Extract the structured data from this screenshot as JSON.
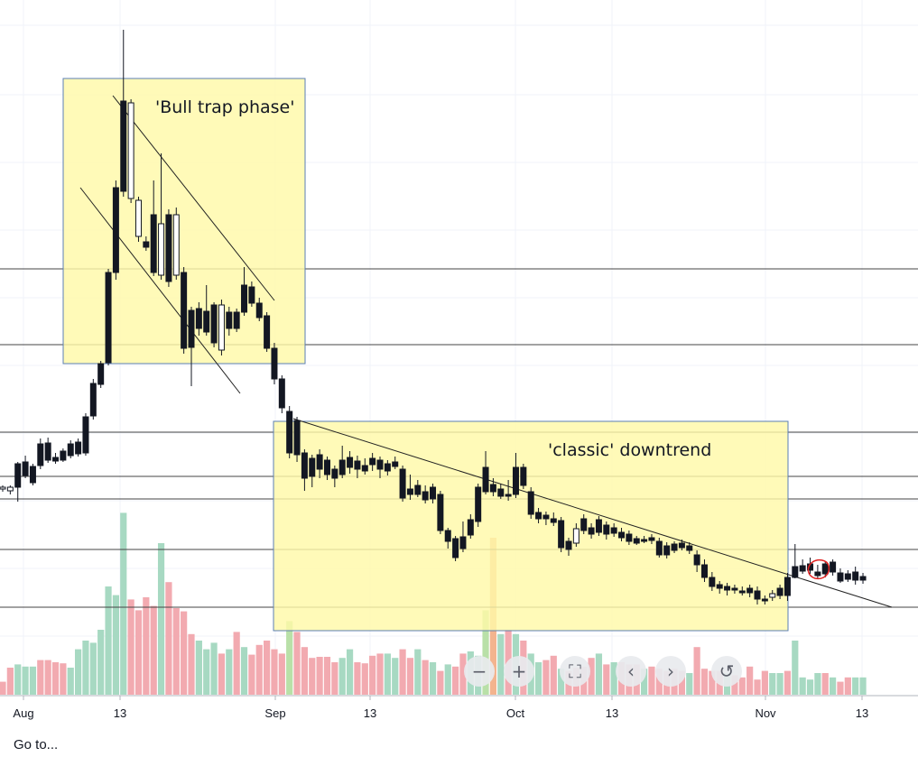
{
  "chart_data": {
    "type": "candlestick",
    "x_axis_labels": [
      "Aug",
      "13",
      "Sep",
      "13",
      "Oct",
      "13",
      "Nov",
      "13"
    ],
    "annotations": {
      "box1_text": "'Bull trap phase'",
      "box2_text": "'classic' downtrend"
    },
    "colors": {
      "box_fill": "#fff9a8",
      "box_stroke": "#5b7fb5",
      "candle": "#131722",
      "vol_up": "#a7d9c2",
      "vol_down": "#f2aab0",
      "vol_up_highlight": "#b9e0a8",
      "vol_down_highlight": "#f3b48e",
      "circle": "#e02020"
    },
    "candles": [
      [
        0,
        542,
        540,
        538,
        545
      ],
      [
        1,
        544,
        540,
        538,
        548
      ],
      [
        2,
        514,
        540,
        512,
        556
      ],
      [
        3,
        512,
        527,
        505,
        530
      ],
      [
        4,
        517,
        535,
        514,
        538
      ],
      [
        5,
        492,
        516,
        486,
        520
      ],
      [
        6,
        491,
        510,
        485,
        513
      ],
      [
        7,
        507,
        511,
        502,
        514
      ],
      [
        8,
        500,
        510,
        497,
        512
      ],
      [
        9,
        492,
        505,
        488,
        508
      ],
      [
        10,
        490,
        503,
        486,
        506
      ],
      [
        11,
        462,
        502,
        458,
        505
      ],
      [
        12,
        425,
        461,
        420,
        465
      ],
      [
        13,
        403,
        426,
        400,
        430
      ],
      [
        14,
        302,
        402,
        298,
        405
      ],
      [
        15,
        208,
        302,
        200,
        310
      ],
      [
        16,
        112,
        212,
        33,
        218
      ],
      [
        17,
        220,
        114,
        110,
        225
      ],
      [
        18,
        262,
        222,
        218,
        268
      ],
      [
        19,
        268,
        274,
        262,
        278
      ],
      [
        20,
        238,
        302,
        200,
        306
      ],
      [
        21,
        305,
        248,
        170,
        310
      ],
      [
        22,
        238,
        312,
        232,
        318
      ],
      [
        23,
        305,
        238,
        230,
        310
      ],
      [
        24,
        302,
        386,
        296,
        392
      ],
      [
        25,
        344,
        385,
        340,
        428
      ],
      [
        26,
        342,
        364,
        335,
        372
      ],
      [
        27,
        345,
        368,
        316,
        372
      ],
      [
        28,
        338,
        380,
        335,
        385
      ],
      [
        29,
        388,
        338,
        332,
        394
      ],
      [
        30,
        346,
        364,
        340,
        372
      ],
      [
        31,
        346,
        364,
        342,
        368
      ],
      [
        32,
        316,
        346,
        296,
        350
      ],
      [
        33,
        318,
        336,
        312,
        340
      ],
      [
        34,
        336,
        352,
        330,
        356
      ],
      [
        35,
        350,
        386,
        346,
        390
      ],
      [
        36,
        386,
        420,
        380,
        426
      ],
      [
        37,
        420,
        452,
        416,
        458
      ],
      [
        38,
        456,
        502,
        450,
        508
      ],
      [
        39,
        466,
        504,
        462,
        512
      ],
      [
        40,
        502,
        530,
        498,
        544
      ],
      [
        41,
        508,
        528,
        504,
        540
      ],
      [
        42,
        504,
        520,
        498,
        530
      ],
      [
        43,
        510,
        526,
        506,
        532
      ],
      [
        44,
        520,
        530,
        516,
        540
      ],
      [
        45,
        510,
        526,
        494,
        530
      ],
      [
        46,
        507,
        518,
        500,
        525
      ],
      [
        47,
        511,
        520,
        505,
        530
      ],
      [
        48,
        516,
        522,
        508,
        526
      ],
      [
        49,
        508,
        515,
        502,
        522
      ],
      [
        50,
        510,
        520,
        506,
        530
      ],
      [
        51,
        514,
        522,
        510,
        527
      ],
      [
        52,
        512,
        517,
        506,
        520
      ],
      [
        53,
        520,
        552,
        516,
        556
      ],
      [
        54,
        542,
        548,
        526,
        554
      ],
      [
        55,
        538,
        548,
        532,
        551
      ],
      [
        56,
        545,
        554,
        538,
        558
      ],
      [
        57,
        540,
        553,
        536,
        558
      ],
      [
        58,
        548,
        588,
        544,
        592
      ],
      [
        59,
        588,
        600,
        585,
        608
      ],
      [
        60,
        597,
        618,
        594,
        622
      ],
      [
        61,
        595,
        608,
        578,
        612
      ],
      [
        62,
        576,
        593,
        570,
        597
      ],
      [
        63,
        540,
        578,
        536,
        584
      ],
      [
        64,
        518,
        545,
        500,
        548
      ],
      [
        65,
        537,
        545,
        530,
        550
      ],
      [
        66,
        542,
        550,
        536,
        553
      ],
      [
        67,
        548,
        550,
        532,
        555
      ],
      [
        68,
        518,
        548,
        502,
        552
      ],
      [
        69,
        518,
        538,
        514,
        542
      ],
      [
        70,
        545,
        570,
        540,
        575
      ],
      [
        71,
        568,
        575,
        563,
        580
      ],
      [
        72,
        571,
        575,
        567,
        582
      ],
      [
        73,
        575,
        579,
        568,
        583
      ],
      [
        74,
        577,
        607,
        573,
        612
      ],
      [
        75,
        600,
        609,
        596,
        616
      ],
      [
        76,
        602,
        586,
        580,
        606
      ],
      [
        77,
        575,
        588,
        570,
        592
      ],
      [
        78,
        585,
        592,
        580,
        597
      ],
      [
        79,
        576,
        590,
        572,
        594
      ],
      [
        80,
        582,
        592,
        578,
        598
      ],
      [
        81,
        585,
        591,
        580,
        595
      ],
      [
        82,
        590,
        596,
        585,
        600
      ],
      [
        83,
        592,
        600,
        588,
        604
      ],
      [
        84,
        597,
        602,
        594,
        604
      ],
      [
        85,
        598,
        600,
        594,
        602
      ],
      [
        86,
        596,
        599,
        592,
        603
      ],
      [
        87,
        600,
        615,
        596,
        618
      ],
      [
        88,
        605,
        615,
        601,
        619
      ],
      [
        89,
        603,
        610,
        600,
        613
      ],
      [
        90,
        602,
        607,
        598,
        610
      ],
      [
        91,
        605,
        610,
        601,
        614
      ],
      [
        92,
        615,
        626,
        610,
        634
      ],
      [
        93,
        626,
        640,
        620,
        645
      ],
      [
        94,
        640,
        650,
        634,
        655
      ],
      [
        95,
        648,
        652,
        644,
        658
      ],
      [
        96,
        650,
        654,
        646,
        660
      ],
      [
        97,
        652,
        654,
        648,
        658
      ],
      [
        98,
        655,
        657,
        650,
        660
      ],
      [
        99,
        652,
        657,
        648,
        662
      ],
      [
        100,
        655,
        664,
        650,
        670
      ],
      [
        101,
        664,
        666,
        660,
        670
      ],
      [
        102,
        662,
        658,
        654,
        666
      ],
      [
        103,
        652,
        660,
        648,
        664
      ],
      [
        104,
        640,
        660,
        635,
        666
      ],
      [
        105,
        628,
        640,
        603,
        641
      ],
      [
        106,
        627,
        633,
        620,
        636
      ],
      [
        107,
        625,
        632,
        618,
        636
      ],
      [
        108,
        634,
        638,
        626,
        642
      ],
      [
        109,
        625,
        636,
        622,
        640
      ],
      [
        110,
        623,
        634,
        620,
        638
      ],
      [
        111,
        635,
        644,
        630,
        646
      ],
      [
        112,
        636,
        642,
        632,
        645
      ],
      [
        113,
        634,
        643,
        628,
        648
      ],
      [
        114,
        639,
        643,
        635,
        647
      ]
    ],
    "volume": [
      [
        0,
        12,
        0
      ],
      [
        1,
        25,
        0
      ],
      [
        2,
        28,
        1
      ],
      [
        3,
        26,
        1
      ],
      [
        4,
        26,
        1
      ],
      [
        5,
        32,
        0
      ],
      [
        6,
        32,
        0
      ],
      [
        7,
        30,
        0
      ],
      [
        8,
        29,
        0
      ],
      [
        9,
        25,
        1
      ],
      [
        10,
        42,
        1
      ],
      [
        11,
        50,
        1
      ],
      [
        12,
        48,
        1
      ],
      [
        13,
        60,
        1
      ],
      [
        14,
        100,
        1
      ],
      [
        15,
        92,
        1
      ],
      [
        16,
        168,
        1
      ],
      [
        17,
        88,
        0
      ],
      [
        18,
        78,
        0
      ],
      [
        19,
        90,
        0
      ],
      [
        20,
        82,
        0
      ],
      [
        21,
        140,
        1
      ],
      [
        22,
        104,
        0
      ],
      [
        23,
        80,
        0
      ],
      [
        24,
        77,
        0
      ],
      [
        25,
        56,
        0
      ],
      [
        26,
        50,
        1
      ],
      [
        27,
        42,
        1
      ],
      [
        28,
        48,
        1
      ],
      [
        29,
        38,
        0
      ],
      [
        30,
        42,
        1
      ],
      [
        31,
        58,
        0
      ],
      [
        32,
        44,
        1
      ],
      [
        33,
        37,
        0
      ],
      [
        34,
        46,
        0
      ],
      [
        35,
        50,
        0
      ],
      [
        36,
        42,
        0
      ],
      [
        37,
        38,
        0
      ],
      [
        38,
        68,
        1
      ],
      [
        39,
        58,
        0
      ],
      [
        40,
        44,
        0
      ],
      [
        41,
        34,
        0
      ],
      [
        42,
        35,
        0
      ],
      [
        43,
        35,
        0
      ],
      [
        44,
        30,
        0
      ],
      [
        45,
        34,
        1
      ],
      [
        46,
        42,
        1
      ],
      [
        47,
        30,
        0
      ],
      [
        48,
        29,
        0
      ],
      [
        49,
        36,
        0
      ],
      [
        50,
        38,
        0
      ],
      [
        51,
        38,
        1
      ],
      [
        52,
        34,
        1
      ],
      [
        53,
        42,
        0
      ],
      [
        54,
        34,
        0
      ],
      [
        55,
        42,
        1
      ],
      [
        56,
        32,
        0
      ],
      [
        57,
        30,
        1
      ],
      [
        58,
        22,
        0
      ],
      [
        59,
        28,
        1
      ],
      [
        60,
        26,
        0
      ],
      [
        61,
        38,
        0
      ],
      [
        62,
        40,
        1
      ],
      [
        63,
        36,
        1
      ],
      [
        64,
        78,
        1
      ],
      [
        65,
        145,
        0
      ],
      [
        66,
        56,
        1
      ],
      [
        67,
        60,
        0
      ],
      [
        68,
        56,
        1
      ],
      [
        69,
        50,
        0
      ],
      [
        70,
        38,
        1
      ],
      [
        71,
        30,
        1
      ],
      [
        72,
        32,
        0
      ],
      [
        73,
        36,
        0
      ],
      [
        74,
        24,
        1
      ],
      [
        75,
        22,
        0
      ],
      [
        76,
        25,
        0
      ],
      [
        77,
        26,
        0
      ],
      [
        78,
        34,
        0
      ],
      [
        79,
        38,
        1
      ],
      [
        80,
        28,
        0
      ],
      [
        81,
        30,
        1
      ],
      [
        82,
        30,
        0
      ],
      [
        83,
        28,
        0
      ],
      [
        84,
        28,
        0
      ],
      [
        85,
        24,
        1
      ],
      [
        86,
        26,
        0
      ],
      [
        87,
        24,
        0
      ],
      [
        88,
        22,
        0
      ],
      [
        89,
        24,
        0
      ],
      [
        90,
        22,
        0
      ],
      [
        91,
        20,
        1
      ],
      [
        92,
        44,
        0
      ],
      [
        93,
        24,
        0
      ],
      [
        94,
        22,
        0
      ],
      [
        95,
        22,
        0
      ],
      [
        96,
        20,
        1
      ],
      [
        97,
        18,
        0
      ],
      [
        98,
        16,
        0
      ],
      [
        99,
        26,
        0
      ],
      [
        100,
        14,
        0
      ],
      [
        101,
        22,
        0
      ],
      [
        102,
        20,
        1
      ],
      [
        103,
        20,
        1
      ],
      [
        104,
        22,
        0
      ],
      [
        105,
        50,
        1
      ],
      [
        106,
        16,
        1
      ],
      [
        107,
        14,
        1
      ],
      [
        108,
        20,
        1
      ],
      [
        109,
        20,
        0
      ],
      [
        110,
        16,
        1
      ],
      [
        111,
        12,
        0
      ],
      [
        112,
        16,
        0
      ],
      [
        113,
        16,
        1
      ],
      [
        114,
        16,
        1
      ]
    ]
  },
  "toolbar": {
    "zoom_out": "−",
    "zoom_in": "+",
    "fullscreen": "⛶",
    "scroll_left": "‹",
    "scroll_right": "›",
    "reset": "↺"
  },
  "footer": {
    "goto_label": "Go to..."
  }
}
